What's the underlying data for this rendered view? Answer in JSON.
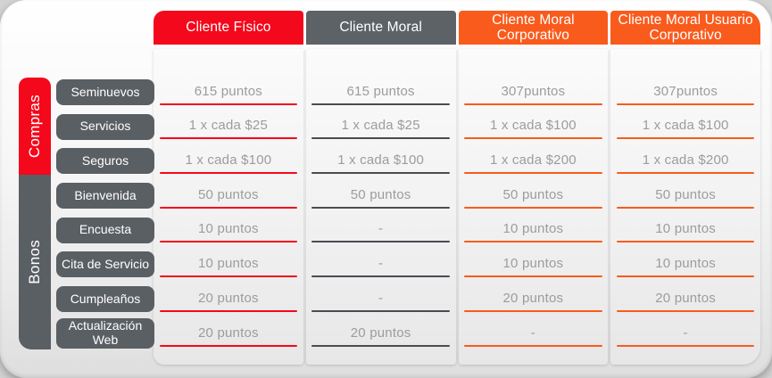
{
  "palette": {
    "red": "#f4081b",
    "orange": "#f95b1d",
    "header_gray": "#5d6267",
    "pill_gray": "#5a5f64",
    "moral_rule": "#484d52",
    "cell_text": "#9c9c9c"
  },
  "chart_data": {
    "type": "table",
    "row_groups": [
      {
        "label": "Compras",
        "color": "#f4081b",
        "rows": [
          "Seminuevos",
          "Servicios",
          "Seguros"
        ]
      },
      {
        "label": "Bonos",
        "color": "#5a5f64",
        "rows": [
          "Bienvenida",
          "Encuesta",
          "Cita de Servicio",
          "Cumpleaños",
          "Actualización Web"
        ]
      }
    ],
    "row_labels": [
      "Seminuevos",
      "Servicios",
      "Seguros",
      "Bienvenida",
      "Encuesta",
      "Cita de Servicio",
      "Cumpleaños",
      "Actualización Web"
    ],
    "columns": [
      {
        "label": "Cliente Físico",
        "header_color": "#f4081b",
        "rule_color": "#f4081b",
        "values": [
          "615 puntos",
          "1 x cada $25",
          "1 x cada $100",
          "50 puntos",
          "10 puntos",
          "10 puntos",
          "20 puntos",
          "20 puntos"
        ]
      },
      {
        "label": "Cliente Moral",
        "header_color": "#5d6267",
        "rule_color": "#484d52",
        "values": [
          "615 puntos",
          "1 x cada $25",
          "1 x cada $100",
          "50 puntos",
          "-",
          "-",
          "-",
          "20 puntos"
        ]
      },
      {
        "label": "Cliente Moral Corporativo",
        "header_color": "#f95b1d",
        "rule_color": "#f95b1d",
        "values": [
          "307puntos",
          "1 x cada $100",
          "1 x cada $200",
          "50 puntos",
          "10 puntos",
          "10 puntos",
          "20 puntos",
          "-"
        ]
      },
      {
        "label": "Cliente Moral Usuario Corporativo",
        "header_color": "#f95b1d",
        "rule_color": "#f95b1d",
        "values": [
          "307puntos",
          "1 x cada $100",
          "1 x cada $200",
          "50 puntos",
          "10 puntos",
          "10 puntos",
          "20 puntos",
          "-"
        ]
      }
    ]
  }
}
